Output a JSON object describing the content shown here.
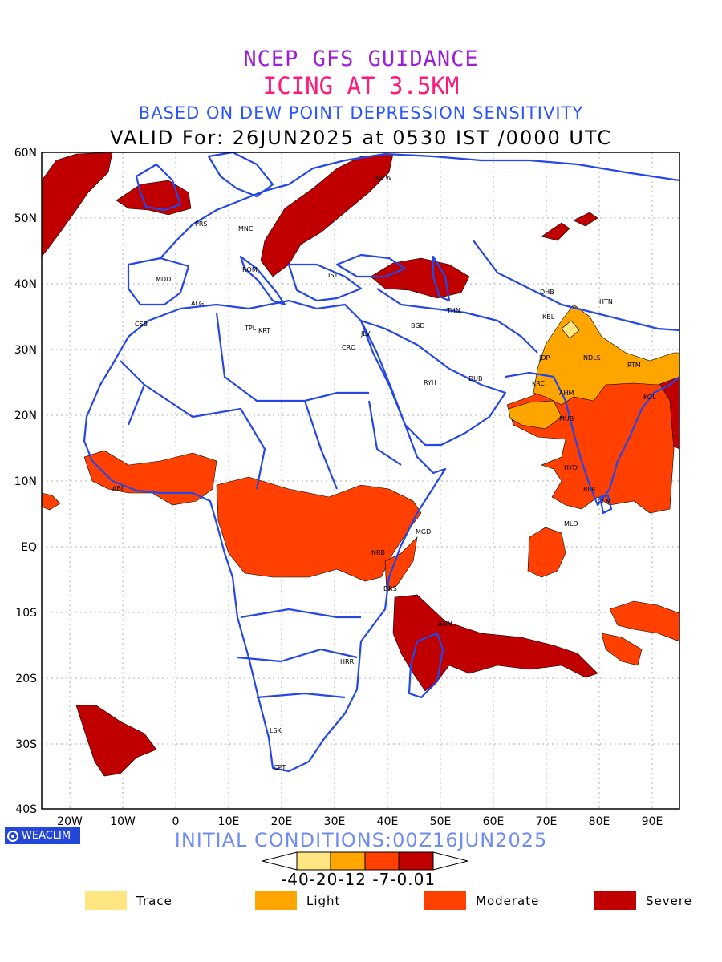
{
  "titles": {
    "line1": "NCEP GFS GUIDANCE",
    "line2": "ICING AT 3.5KM",
    "line3": "BASED ON DEW POINT DEPRESSION SENSITIVITY",
    "line4": "VALID For: 26JUN2025 at 0530 IST /0000 UTC"
  },
  "axes": {
    "lat_labels": [
      "60N",
      "50N",
      "40N",
      "30N",
      "20N",
      "10N",
      "EQ",
      "10S",
      "20S",
      "30S",
      "40S"
    ],
    "lon_labels": [
      "20W",
      "10W",
      "0",
      "10E",
      "20E",
      "30E",
      "40E",
      "50E",
      "60E",
      "70E",
      "80E",
      "90E"
    ]
  },
  "cities": [
    {
      "code": "MCW"
    },
    {
      "code": "PRS"
    },
    {
      "code": "MNC"
    },
    {
      "code": "ROM"
    },
    {
      "code": "IST"
    },
    {
      "code": "MDD"
    },
    {
      "code": "ALG"
    },
    {
      "code": "CSB"
    },
    {
      "code": "TPL"
    },
    {
      "code": "KRT"
    },
    {
      "code": "CRO"
    },
    {
      "code": "JLV"
    },
    {
      "code": "BGD"
    },
    {
      "code": "THN"
    },
    {
      "code": "RYH"
    },
    {
      "code": "DUB"
    },
    {
      "code": "DHB"
    },
    {
      "code": "HTN"
    },
    {
      "code": "KBL"
    },
    {
      "code": "NDLS"
    },
    {
      "code": "JDP"
    },
    {
      "code": "KRC"
    },
    {
      "code": "AHM"
    },
    {
      "code": "MUB"
    },
    {
      "code": "RTM"
    },
    {
      "code": "KOL"
    },
    {
      "code": "BLR"
    },
    {
      "code": "HYD"
    },
    {
      "code": "CLM"
    },
    {
      "code": "MLD"
    },
    {
      "code": "MGD"
    },
    {
      "code": "NRB"
    },
    {
      "code": "DRS"
    },
    {
      "code": "ANN"
    },
    {
      "code": "HRR"
    },
    {
      "code": "LSK"
    },
    {
      "code": "CPT"
    },
    {
      "code": "ABJ"
    }
  ],
  "logo_text": "WEACLIM",
  "initial_conditions": "INITIAL CONDITIONS:00Z16JUN2025",
  "scale": {
    "labels": "-40-20-12 -7-0.01",
    "colors": [
      "#ffe680",
      "#ffa500",
      "#ff4000",
      "#c00000"
    ]
  },
  "legend": [
    {
      "label": "Trace",
      "color": "#ffe680"
    },
    {
      "label": "Light",
      "color": "#ffa500"
    },
    {
      "label": "Moderate",
      "color": "#ff4000"
    },
    {
      "label": "Severe",
      "color": "#c00000"
    }
  ],
  "colors": {
    "coastline": "#2447e6",
    "severe": "#c00000",
    "moderate": "#ff4000",
    "light": "#ffa500",
    "trace": "#ffe680"
  }
}
